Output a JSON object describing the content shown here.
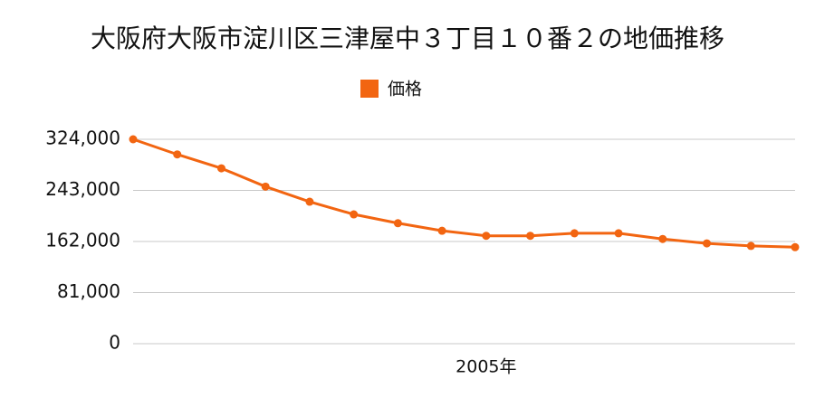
{
  "chart_data": {
    "type": "line",
    "title": "大阪府大阪市淀川区三津屋中３丁目１０番２の地価推移",
    "categories": [
      null,
      null,
      null,
      null,
      null,
      null,
      null,
      null,
      "2005年",
      null,
      null,
      null,
      null,
      null,
      null,
      null
    ],
    "series": [
      {
        "name": "価格",
        "color": "#f26511",
        "values": [
          324000,
          300000,
          278000,
          249000,
          225000,
          205000,
          191000,
          179000,
          171000,
          171000,
          175000,
          175000,
          166000,
          159000,
          155000,
          153000
        ]
      }
    ],
    "ylim": [
      0,
      324000
    ],
    "yticks": [
      0,
      {
        "value": 81000,
        "label": "81,000"
      },
      {
        "value": 162000,
        "label": "162,000"
      },
      {
        "value": 243000,
        "label": "243,000"
      },
      {
        "value": 324000,
        "label": "324,000"
      }
    ],
    "grid": true,
    "legend": "top"
  }
}
